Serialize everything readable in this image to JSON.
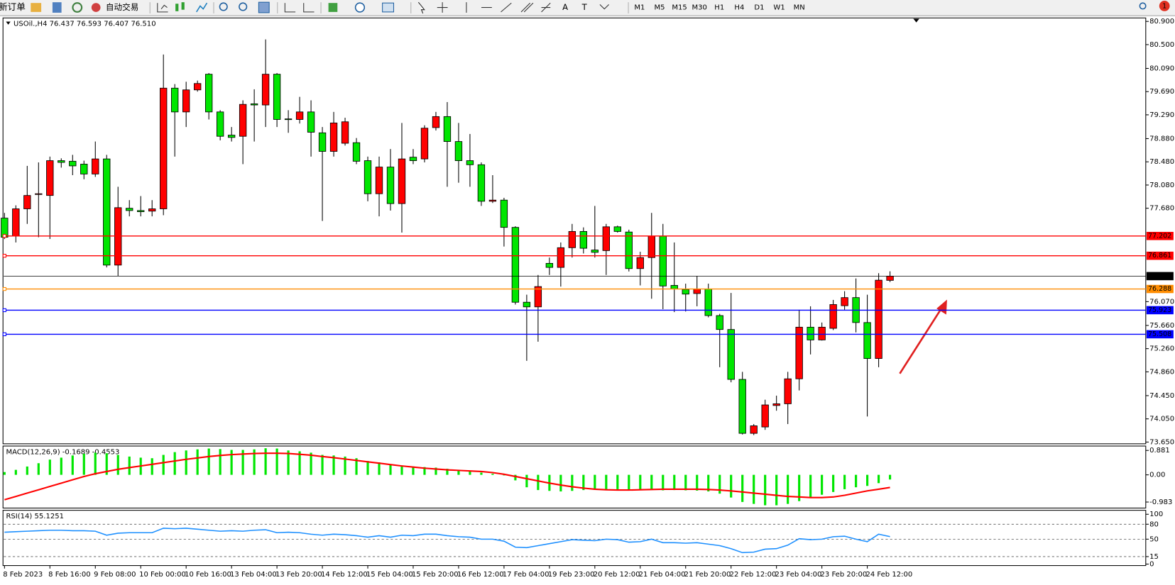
{
  "toolbar": {
    "new_order": "新订单",
    "auto_trading": "自动交易",
    "drawing_tools": [
      "A",
      "T"
    ],
    "timeframes": [
      "M1",
      "M5",
      "M15",
      "M30",
      "H1",
      "H4",
      "D1",
      "W1",
      "MN"
    ],
    "notifications": "1"
  },
  "chart_data": [
    {
      "type": "candlestick",
      "title": "USOil.,H4  76.437 76.593 76.407 76.510",
      "up_color": "#ff0000",
      "down_color": "#00e600",
      "categories": [
        "8 Feb 2023",
        null,
        null,
        null,
        "8 Feb 16:00",
        null,
        null,
        null,
        "9 Feb 08:00",
        null,
        null,
        null,
        "10 Feb 00:00",
        null,
        null,
        null,
        "10 Feb 16:00",
        null,
        null,
        null,
        "13 Feb 04:00",
        null,
        null,
        null,
        "13 Feb 20:00",
        null,
        null,
        null,
        "14 Feb 12:00",
        null,
        null,
        null,
        "15 Feb 04:00",
        null,
        null,
        null,
        "15 Feb 20:00",
        null,
        null,
        null,
        "16 Feb 12:00",
        null,
        null,
        null,
        "17 Feb 04:00",
        null,
        null,
        null,
        "19 Feb 23:00",
        null,
        null,
        null,
        "20 Feb 12:00",
        null,
        null,
        null,
        "21 Feb 04:00",
        null,
        null,
        null,
        "21 Feb 20:00",
        null,
        null,
        null,
        "22 Feb 12:00",
        null,
        null,
        null,
        "23 Feb 04:00",
        null,
        null,
        null,
        "23 Feb 20:00",
        null,
        null,
        null,
        "24 Feb 12:00",
        null,
        null
      ],
      "open": [
        77.51,
        77.2,
        77.67,
        77.92,
        77.9,
        78.5,
        78.49,
        78.44,
        78.27,
        78.53,
        76.7,
        77.68,
        77.64,
        77.63,
        77.67,
        79.75,
        79.34,
        79.72,
        79.99,
        79.34,
        78.94,
        78.92,
        79.48,
        79.46,
        79.99,
        79.22,
        79.21,
        79.34,
        78.98,
        78.66,
        78.8,
        78.81,
        78.5,
        77.93,
        78.39,
        77.76,
        78.56,
        78.53,
        79.07,
        79.26,
        78.83,
        78.5,
        78.43,
        77.8,
        77.82,
        77.35,
        76.06,
        75.98,
        76.73,
        76.66,
        77.0,
        77.28,
        76.96,
        76.95,
        77.36,
        77.27,
        76.64,
        76.83,
        77.2,
        76.35,
        76.28,
        76.21,
        76.29,
        75.83,
        75.59,
        74.73,
        73.8,
        73.91,
        74.28,
        74.31,
        74.74,
        75.63,
        75.41,
        75.61,
        76.0,
        76.14,
        75.71,
        75.09,
        76.437
      ],
      "high": [
        77.6,
        77.73,
        78.41,
        78.47,
        78.57,
        78.54,
        78.6,
        78.5,
        78.83,
        78.6,
        78.05,
        77.82,
        77.89,
        77.82,
        80.33,
        79.82,
        79.86,
        79.88,
        80.01,
        79.37,
        79.08,
        79.54,
        79.73,
        80.59,
        80.01,
        79.37,
        79.6,
        79.54,
        79.08,
        79.34,
        79.24,
        78.89,
        78.57,
        78.57,
        78.7,
        79.15,
        78.7,
        79.11,
        79.34,
        79.51,
        79.15,
        78.96,
        78.47,
        78.25,
        77.86,
        77.37,
        76.19,
        76.53,
        76.83,
        77.09,
        77.41,
        77.35,
        77.72,
        77.41,
        77.38,
        77.31,
        76.93,
        77.6,
        77.41,
        77.09,
        76.38,
        76.51,
        76.38,
        75.86,
        76.22,
        74.86,
        73.96,
        74.38,
        74.45,
        74.86,
        75.93,
        75.99,
        75.71,
        76.1,
        76.25,
        76.47,
        76.19,
        76.56,
        76.593
      ],
      "low": [
        77.15,
        77.09,
        77.41,
        77.18,
        77.15,
        78.38,
        78.25,
        78.18,
        78.22,
        76.66,
        76.51,
        77.54,
        77.54,
        77.54,
        77.56,
        78.57,
        79.08,
        79.69,
        79.21,
        78.85,
        78.83,
        78.44,
        78.83,
        79.08,
        79.08,
        78.98,
        79.14,
        78.57,
        77.46,
        78.57,
        78.76,
        78.44,
        77.8,
        77.54,
        77.64,
        77.26,
        78.44,
        78.47,
        79.02,
        78.05,
        78.12,
        78.05,
        77.72,
        77.77,
        77.02,
        76.02,
        75.05,
        75.38,
        76.53,
        76.33,
        76.83,
        76.9,
        76.83,
        76.53,
        77.26,
        76.59,
        76.35,
        76.12,
        75.94,
        75.89,
        75.9,
        75.99,
        75.8,
        74.94,
        74.68,
        73.78,
        73.77,
        73.86,
        74.19,
        73.96,
        74.54,
        75.16,
        75.4,
        75.58,
        75.93,
        75.54,
        74.09,
        74.94,
        76.407
      ],
      "close": [
        77.18,
        77.67,
        77.9,
        77.93,
        78.5,
        78.47,
        78.41,
        78.27,
        78.53,
        76.7,
        77.69,
        77.64,
        77.62,
        77.67,
        79.75,
        79.34,
        79.72,
        79.83,
        79.34,
        78.92,
        78.9,
        79.47,
        79.46,
        79.99,
        79.21,
        79.21,
        79.34,
        78.99,
        78.66,
        79.15,
        79.17,
        78.49,
        77.93,
        78.39,
        77.76,
        78.53,
        78.5,
        79.06,
        79.26,
        78.83,
        78.5,
        78.43,
        77.8,
        77.82,
        77.35,
        76.06,
        75.98,
        76.33,
        76.66,
        77.0,
        77.28,
        76.99,
        76.92,
        77.36,
        77.28,
        76.64,
        76.83,
        77.2,
        76.34,
        76.29,
        76.2,
        76.29,
        75.83,
        75.59,
        74.73,
        73.8,
        73.93,
        74.29,
        74.31,
        74.74,
        75.63,
        75.41,
        75.63,
        76.02,
        76.14,
        75.71,
        75.09,
        76.44,
        76.51
      ],
      "ylim": [
        73.62,
        80.96
      ],
      "yticks": [
        {
          "value": 80.9,
          "label": "80.900"
        },
        {
          "value": 80.5,
          "label": "80.500"
        },
        {
          "value": 80.09,
          "label": "80.090"
        },
        {
          "value": 79.69,
          "label": "79.690"
        },
        {
          "value": 79.29,
          "label": "79.290"
        },
        {
          "value": 78.88,
          "label": "78.880"
        },
        {
          "value": 78.48,
          "label": "78.480"
        },
        {
          "value": 78.08,
          "label": "78.080"
        },
        {
          "value": 77.68,
          "label": "77.680"
        },
        {
          "value": 76.07,
          "label": "76.070"
        },
        {
          "value": 75.66,
          "label": "75.660"
        },
        {
          "value": 75.26,
          "label": "75.260"
        },
        {
          "value": 74.86,
          "label": "74.860"
        },
        {
          "value": 74.45,
          "label": "74.450"
        },
        {
          "value": 74.05,
          "label": "74.050"
        },
        {
          "value": 73.65,
          "label": "73.650"
        }
      ],
      "hlines": [
        {
          "value": 77.202,
          "color": "#ff0000"
        },
        {
          "value": 76.861,
          "color": "#ff0000"
        },
        {
          "value": 76.288,
          "color": "#ff8c00"
        },
        {
          "value": 75.923,
          "color": "#0000ff"
        },
        {
          "value": 75.508,
          "color": "#0000ff"
        }
      ],
      "current_price": {
        "value": 76.51,
        "label": "76.510"
      },
      "current_price_color": "#000000"
    },
    {
      "type": "macd",
      "title": "MACD(12,26,9) -0.1689 -0.4553",
      "histogram_color": "#00e600",
      "signal_color": "#ff0000",
      "histogram": [
        0.1,
        0.18,
        0.3,
        0.42,
        0.55,
        0.62,
        0.7,
        0.76,
        0.8,
        0.78,
        0.72,
        0.66,
        0.62,
        0.6,
        0.72,
        0.82,
        0.88,
        0.92,
        0.95,
        0.93,
        0.9,
        0.9,
        0.92,
        0.96,
        0.95,
        0.88,
        0.85,
        0.8,
        0.72,
        0.7,
        0.66,
        0.6,
        0.5,
        0.45,
        0.38,
        0.34,
        0.3,
        0.28,
        0.26,
        0.22,
        0.18,
        0.14,
        0.08,
        0.04,
        -0.02,
        -0.2,
        -0.45,
        -0.55,
        -0.58,
        -0.6,
        -0.58,
        -0.55,
        -0.54,
        -0.52,
        -0.52,
        -0.55,
        -0.55,
        -0.52,
        -0.56,
        -0.55,
        -0.56,
        -0.57,
        -0.6,
        -0.68,
        -0.82,
        -0.98,
        -1.05,
        -1.1,
        -1.1,
        -1.05,
        -0.95,
        -0.82,
        -0.72,
        -0.62,
        -0.52,
        -0.45,
        -0.4,
        -0.3,
        -0.1689
      ],
      "signal": [
        -0.9,
        -0.78,
        -0.66,
        -0.54,
        -0.42,
        -0.3,
        -0.18,
        -0.06,
        0.04,
        0.12,
        0.2,
        0.26,
        0.32,
        0.38,
        0.44,
        0.5,
        0.56,
        0.61,
        0.66,
        0.7,
        0.73,
        0.75,
        0.77,
        0.78,
        0.78,
        0.77,
        0.74,
        0.71,
        0.66,
        0.62,
        0.57,
        0.52,
        0.47,
        0.42,
        0.37,
        0.32,
        0.28,
        0.24,
        0.21,
        0.18,
        0.16,
        0.14,
        0.12,
        0.08,
        0.02,
        -0.06,
        -0.14,
        -0.22,
        -0.3,
        -0.37,
        -0.43,
        -0.48,
        -0.52,
        -0.54,
        -0.55,
        -0.55,
        -0.54,
        -0.53,
        -0.52,
        -0.52,
        -0.52,
        -0.52,
        -0.53,
        -0.55,
        -0.58,
        -0.62,
        -0.66,
        -0.7,
        -0.74,
        -0.78,
        -0.8,
        -0.82,
        -0.82,
        -0.8,
        -0.74,
        -0.66,
        -0.58,
        -0.52,
        -0.4553
      ],
      "ylim": [
        -1.2,
        1.04
      ],
      "yticks": [
        0.881,
        {
          "value": 0,
          "label": "0.00"
        },
        -0.983
      ]
    },
    {
      "type": "line",
      "title": "RSI(14) 55.1251",
      "color": "#1e90ff",
      "values": [
        64,
        65,
        66,
        67,
        68,
        68,
        67,
        67,
        66,
        58,
        62,
        63,
        63,
        63,
        72,
        71,
        72,
        70,
        68,
        66,
        67,
        66,
        68,
        69,
        63,
        64,
        63,
        60,
        58,
        60,
        59,
        57,
        54,
        57,
        54,
        58,
        57,
        60,
        60,
        57,
        55,
        54,
        50,
        50,
        46,
        34,
        33,
        37,
        41,
        45,
        49,
        48,
        47,
        50,
        49,
        44,
        45,
        50,
        43,
        43,
        42,
        43,
        40,
        37,
        31,
        23,
        24,
        30,
        31,
        38,
        51,
        49,
        50,
        55,
        56,
        50,
        45,
        60,
        55.1251
      ],
      "ylim": [
        -3,
        108
      ],
      "yticks": [
        100,
        80,
        50,
        15,
        0
      ],
      "levels": [
        80,
        50,
        15
      ]
    }
  ]
}
